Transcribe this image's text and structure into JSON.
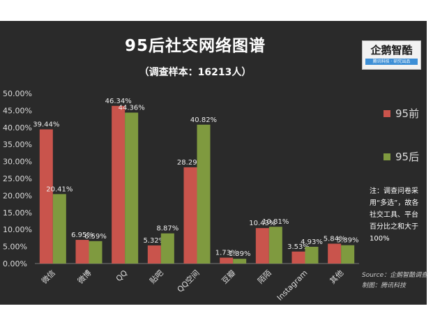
{
  "chart_data": {
    "type": "bar",
    "title": "95后社交网络图谱",
    "subtitle": "（调查样本：16213人）",
    "categories": [
      "微信",
      "微博",
      "QQ",
      "贴吧",
      "QQ空间",
      "豆瓣",
      "陌陌",
      "Instagram",
      "其他"
    ],
    "series": [
      {
        "name": "95前",
        "color": "#c9544c",
        "values": [
          39.44,
          6.95,
          46.34,
          5.32,
          28.29,
          1.73,
          10.43,
          3.53,
          5.84
        ]
      },
      {
        "name": "95后",
        "color": "#7f9a3f",
        "values": [
          20.41,
          6.59,
          44.36,
          8.87,
          40.82,
          1.39,
          10.81,
          4.93,
          5.39
        ]
      }
    ],
    "data_labels": [
      [
        "39.44%",
        "6.95%",
        "46.34%",
        "5.32%",
        "28.29%",
        "1.73%",
        "10.43%",
        "3.53%",
        "5.84%"
      ],
      [
        "20.41%",
        "6.59%",
        "44.36%",
        "8.87%",
        "40.82%",
        "1.39%",
        "10.81%",
        "4.93%",
        "5.39%"
      ]
    ],
    "yticks": [
      "0.00%",
      "5.00%",
      "10.00%",
      "15.00%",
      "20.00%",
      "25.00%",
      "30.00%",
      "35.00%",
      "40.00%",
      "45.00%",
      "50.00%"
    ],
    "ylim": [
      0,
      50
    ],
    "grid": false,
    "legend_position": "right"
  },
  "logo": {
    "name": "企鹅智酷",
    "tagline": "腾讯科技 · 研究出品"
  },
  "note": "注：调查问卷采用“多选”，故各社交工具、平台百分比之和大于100%",
  "source": "Source：企鹅智酷调查",
  "credit": "制图：腾讯科技"
}
